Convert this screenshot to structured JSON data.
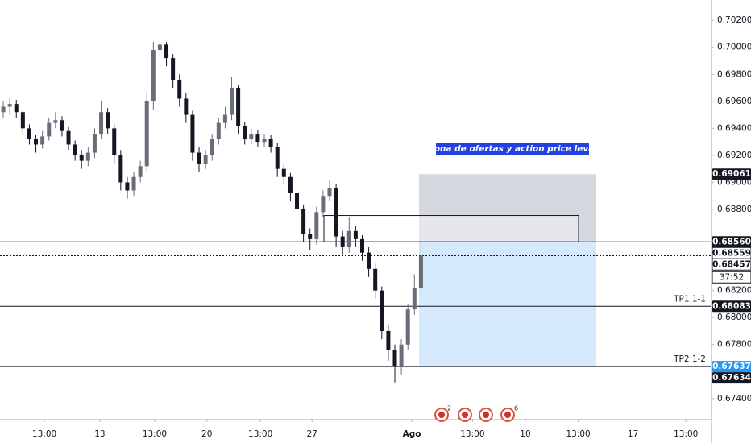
{
  "chart_data": {
    "type": "candlestick",
    "x": [
      0,
      1,
      2,
      3,
      4,
      5,
      6,
      7,
      8,
      9,
      10,
      11,
      12,
      13,
      14,
      15,
      16,
      17,
      18,
      19,
      20,
      21,
      22,
      23,
      24,
      25,
      26,
      27,
      28,
      29,
      30,
      31,
      32,
      33,
      34,
      35,
      36,
      37,
      38,
      39,
      40,
      41,
      42,
      43,
      44,
      45,
      46,
      47,
      48,
      49,
      50,
      51,
      52,
      53,
      54,
      55,
      56,
      57,
      58,
      59,
      60,
      61,
      62,
      63,
      64
    ],
    "open": [
      0.6952,
      0.6956,
      0.6958,
      0.6952,
      0.694,
      0.6932,
      0.6928,
      0.6934,
      0.6944,
      0.6946,
      0.6938,
      0.6928,
      0.692,
      0.6916,
      0.6922,
      0.6936,
      0.6952,
      0.694,
      0.692,
      0.69,
      0.6894,
      0.6904,
      0.6912,
      0.696,
      0.6998,
      0.7002,
      0.6992,
      0.6976,
      0.6962,
      0.695,
      0.6922,
      0.6914,
      0.692,
      0.6932,
      0.6944,
      0.695,
      0.697,
      0.6942,
      0.6932,
      0.6936,
      0.693,
      0.6932,
      0.6926,
      0.691,
      0.6904,
      0.6892,
      0.688,
      0.6862,
      0.6858,
      0.6878,
      0.689,
      0.6896,
      0.686,
      0.6852,
      0.6864,
      0.6858,
      0.6848,
      0.6836,
      0.682,
      0.679,
      0.6776,
      0.6764,
      0.678,
      0.6806,
      0.6822
    ],
    "high": [
      0.696,
      0.6962,
      0.6961,
      0.6954,
      0.6943,
      0.6935,
      0.6938,
      0.6948,
      0.6952,
      0.6949,
      0.6941,
      0.6931,
      0.6924,
      0.6926,
      0.694,
      0.696,
      0.6955,
      0.6943,
      0.6924,
      0.6904,
      0.6908,
      0.6916,
      0.6966,
      0.7004,
      0.7006,
      0.7004,
      0.6995,
      0.698,
      0.6966,
      0.6953,
      0.6926,
      0.6924,
      0.6936,
      0.6948,
      0.6956,
      0.6978,
      0.6972,
      0.6945,
      0.694,
      0.6939,
      0.6936,
      0.6935,
      0.6929,
      0.6914,
      0.6907,
      0.6895,
      0.6883,
      0.6866,
      0.6882,
      0.6894,
      0.6902,
      0.6899,
      0.6864,
      0.6874,
      0.6868,
      0.6861,
      0.6852,
      0.684,
      0.6823,
      0.6794,
      0.678,
      0.6784,
      0.681,
      0.6832,
      0.6856
    ],
    "low": [
      0.6948,
      0.695,
      0.6948,
      0.6936,
      0.6928,
      0.6922,
      0.6925,
      0.6931,
      0.694,
      0.6934,
      0.6924,
      0.6916,
      0.691,
      0.6912,
      0.6918,
      0.6932,
      0.6936,
      0.6914,
      0.6894,
      0.6888,
      0.689,
      0.69,
      0.6908,
      0.6954,
      0.6992,
      0.6986,
      0.697,
      0.6956,
      0.6944,
      0.6916,
      0.6908,
      0.691,
      0.6916,
      0.6928,
      0.694,
      0.6946,
      0.6936,
      0.6928,
      0.6928,
      0.6926,
      0.6926,
      0.6922,
      0.6904,
      0.6898,
      0.6886,
      0.6874,
      0.6856,
      0.685,
      0.6854,
      0.6874,
      0.6886,
      0.6852,
      0.6846,
      0.6848,
      0.6852,
      0.6842,
      0.683,
      0.6814,
      0.6784,
      0.6768,
      0.6752,
      0.6758,
      0.6776,
      0.6802,
      0.6818
    ],
    "close": [
      0.6956,
      0.6958,
      0.6952,
      0.694,
      0.6932,
      0.6928,
      0.6934,
      0.6944,
      0.6946,
      0.6938,
      0.6928,
      0.692,
      0.6916,
      0.6922,
      0.6936,
      0.6952,
      0.694,
      0.692,
      0.69,
      0.6894,
      0.6904,
      0.6912,
      0.696,
      0.6998,
      0.7002,
      0.6992,
      0.6976,
      0.6962,
      0.695,
      0.6922,
      0.6914,
      0.692,
      0.6932,
      0.6944,
      0.695,
      0.697,
      0.6942,
      0.6932,
      0.6936,
      0.693,
      0.6932,
      0.6926,
      0.691,
      0.6904,
      0.6892,
      0.688,
      0.6862,
      0.6858,
      0.6878,
      0.689,
      0.6896,
      0.686,
      0.6852,
      0.6864,
      0.6858,
      0.6848,
      0.6836,
      0.682,
      0.679,
      0.6776,
      0.6764,
      0.678,
      0.6806,
      0.6822,
      0.68457
    ],
    "up_color": "#6a6d78",
    "down_color": "#131722",
    "xlim": [
      -0.5,
      108.4
    ],
    "ylim": [
      0.6725,
      0.7035
    ],
    "grid": false,
    "xticks": [
      {
        "value": 6.3,
        "label": "13:00"
      },
      {
        "value": 14.8,
        "label": "13"
      },
      {
        "value": 23.2,
        "label": "13:00"
      },
      {
        "value": 31.2,
        "label": "20"
      },
      {
        "value": 39.4,
        "label": "13:00"
      },
      {
        "value": 47.3,
        "label": "27"
      },
      {
        "value": 62.6,
        "label": "Ago"
      },
      {
        "value": 71.9,
        "label": "13:00"
      },
      {
        "value": 80,
        "label": "10"
      },
      {
        "value": 88.1,
        "label": "13:00"
      },
      {
        "value": 96.5,
        "label": "17"
      },
      {
        "value": 104.6,
        "label": "13:00"
      }
    ],
    "yticks": [
      {
        "value": 0.702,
        "label": "0.70200"
      },
      {
        "value": 0.7,
        "label": "0.70000"
      },
      {
        "value": 0.698,
        "label": "0.69800"
      },
      {
        "value": 0.696,
        "label": "0.69600"
      },
      {
        "value": 0.694,
        "label": "0.69400"
      },
      {
        "value": 0.692,
        "label": "0.69200"
      },
      {
        "value": 0.69,
        "label": "0.69000"
      },
      {
        "value": 0.688,
        "label": "0.68800"
      },
      {
        "value": 0.682,
        "label": "0.68200"
      },
      {
        "value": 0.68,
        "label": "0.68000"
      },
      {
        "value": 0.678,
        "label": "0.67800"
      },
      {
        "value": 0.674,
        "label": "0.67400"
      }
    ],
    "levels": [
      {
        "value": 0.69061,
        "label": "0.69061",
        "line": "none",
        "bg": "#131722",
        "fg": "#ffffff"
      },
      {
        "value": 0.6856,
        "label": "0.68560",
        "line": "solid",
        "bg": "#131722",
        "fg": "#ffffff"
      },
      {
        "value": 0.68559,
        "label": "0.68559",
        "line": "none",
        "bg": "#ffffff",
        "fg": "#131722"
      },
      {
        "value": 0.68457,
        "label": "0.68457",
        "line": "dotted",
        "bg": "#ffffff",
        "fg": "#131722",
        "countdown": "37:52"
      },
      {
        "value": 0.68083,
        "label": "0.68083",
        "line": "solid",
        "bg": "#131722",
        "fg": "#ffffff",
        "tag": "TP1 1-1"
      },
      {
        "value": 0.67637,
        "label": "0.67637",
        "line": "solid",
        "bg": "#2196f3",
        "fg": "#ffffff",
        "tag": "TP2 1-2"
      },
      {
        "value": 0.67634,
        "label": "0.67634",
        "line": "none",
        "bg": "#131722",
        "fg": "#ffffff"
      }
    ],
    "position": {
      "stop": 0.69061,
      "entry": 0.6856,
      "target": 0.67637,
      "stop_color": "#d1d4dc",
      "target_color": "#d5e9fc"
    },
    "zone": {
      "label": "Zona  de ofertas y action price level",
      "top": 0.68755,
      "bottom": 0.6856,
      "color": "#2340e0"
    },
    "event_badges": [
      "2",
      "6"
    ]
  }
}
